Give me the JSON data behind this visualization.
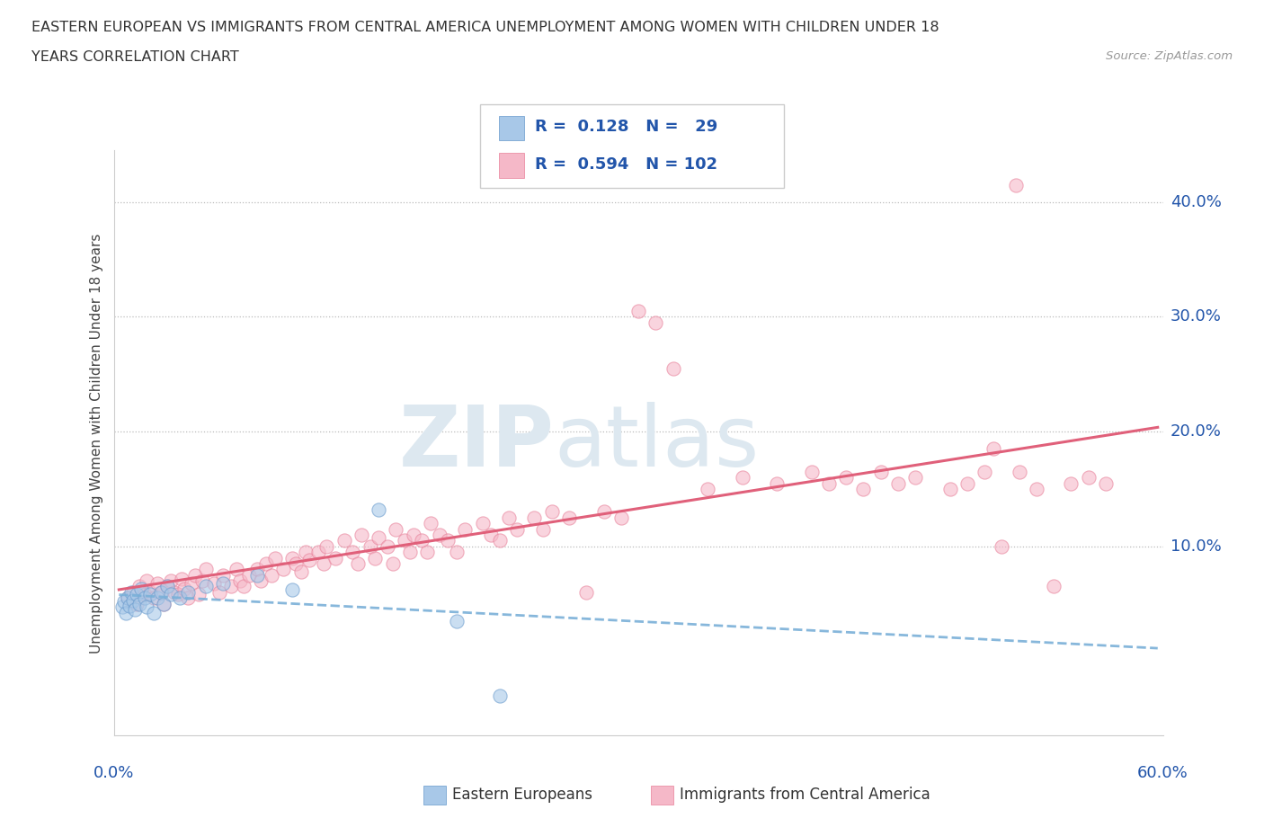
{
  "title_line1": "EASTERN EUROPEAN VS IMMIGRANTS FROM CENTRAL AMERICA UNEMPLOYMENT AMONG WOMEN WITH CHILDREN UNDER 18",
  "title_line2": "YEARS CORRELATION CHART",
  "source": "Source: ZipAtlas.com",
  "ylabel": "Unemployment Among Women with Children Under 18 years",
  "r1": 0.128,
  "n1": 29,
  "r2": 0.594,
  "n2": 102,
  "color_blue": "#a8c8e8",
  "color_blue_edge": "#6699cc",
  "color_pink": "#f5b8c8",
  "color_pink_edge": "#e88099",
  "color_blue_line": "#7ab0d8",
  "color_pink_line": "#e0607a",
  "color_text_blue": "#2255aa",
  "watermark_color": "#dde8f0",
  "xlim": [
    0.0,
    0.6
  ],
  "ylim": [
    -0.065,
    0.445
  ],
  "yticks": [
    0.1,
    0.2,
    0.3,
    0.4
  ],
  "ytick_labels": [
    "10.0%",
    "20.0%",
    "30.0%",
    "40.0%"
  ],
  "blue_x": [
    0.002,
    0.003,
    0.004,
    0.005,
    0.006,
    0.007,
    0.008,
    0.009,
    0.01,
    0.012,
    0.013,
    0.015,
    0.016,
    0.018,
    0.02,
    0.022,
    0.024,
    0.026,
    0.028,
    0.03,
    0.035,
    0.04,
    0.05,
    0.06,
    0.08,
    0.1,
    0.15,
    0.195,
    0.22
  ],
  "blue_y": [
    0.047,
    0.052,
    0.042,
    0.055,
    0.048,
    0.06,
    0.053,
    0.045,
    0.058,
    0.05,
    0.063,
    0.055,
    0.047,
    0.058,
    0.042,
    0.055,
    0.06,
    0.05,
    0.065,
    0.058,
    0.055,
    0.06,
    0.065,
    0.068,
    0.075,
    0.062,
    0.132,
    0.035,
    -0.03
  ],
  "pink_x": [
    0.005,
    0.008,
    0.01,
    0.012,
    0.015,
    0.016,
    0.018,
    0.02,
    0.022,
    0.025,
    0.026,
    0.028,
    0.03,
    0.032,
    0.034,
    0.036,
    0.038,
    0.04,
    0.042,
    0.044,
    0.046,
    0.048,
    0.05,
    0.055,
    0.058,
    0.06,
    0.065,
    0.068,
    0.07,
    0.072,
    0.075,
    0.08,
    0.082,
    0.085,
    0.088,
    0.09,
    0.095,
    0.1,
    0.102,
    0.105,
    0.108,
    0.11,
    0.115,
    0.118,
    0.12,
    0.125,
    0.13,
    0.135,
    0.138,
    0.14,
    0.145,
    0.148,
    0.15,
    0.155,
    0.158,
    0.16,
    0.165,
    0.168,
    0.17,
    0.175,
    0.178,
    0.18,
    0.185,
    0.19,
    0.195,
    0.2,
    0.21,
    0.215,
    0.22,
    0.225,
    0.23,
    0.24,
    0.245,
    0.25,
    0.26,
    0.27,
    0.28,
    0.29,
    0.3,
    0.31,
    0.32,
    0.34,
    0.36,
    0.38,
    0.4,
    0.41,
    0.42,
    0.43,
    0.44,
    0.45,
    0.46,
    0.48,
    0.49,
    0.5,
    0.505,
    0.51,
    0.52,
    0.53,
    0.54,
    0.55,
    0.56,
    0.57
  ],
  "pink_y": [
    0.055,
    0.06,
    0.05,
    0.065,
    0.058,
    0.07,
    0.06,
    0.055,
    0.068,
    0.06,
    0.05,
    0.065,
    0.07,
    0.06,
    0.058,
    0.072,
    0.063,
    0.055,
    0.068,
    0.075,
    0.058,
    0.07,
    0.08,
    0.068,
    0.06,
    0.075,
    0.065,
    0.08,
    0.07,
    0.065,
    0.075,
    0.08,
    0.07,
    0.085,
    0.075,
    0.09,
    0.08,
    0.09,
    0.085,
    0.078,
    0.095,
    0.088,
    0.095,
    0.085,
    0.1,
    0.09,
    0.105,
    0.095,
    0.085,
    0.11,
    0.1,
    0.09,
    0.108,
    0.1,
    0.085,
    0.115,
    0.105,
    0.095,
    0.11,
    0.105,
    0.095,
    0.12,
    0.11,
    0.105,
    0.095,
    0.115,
    0.12,
    0.11,
    0.105,
    0.125,
    0.115,
    0.125,
    0.115,
    0.13,
    0.125,
    0.06,
    0.13,
    0.125,
    0.305,
    0.295,
    0.255,
    0.15,
    0.16,
    0.155,
    0.165,
    0.155,
    0.16,
    0.15,
    0.165,
    0.155,
    0.16,
    0.15,
    0.155,
    0.165,
    0.185,
    0.1,
    0.165,
    0.15,
    0.065,
    0.155,
    0.16,
    0.155
  ]
}
